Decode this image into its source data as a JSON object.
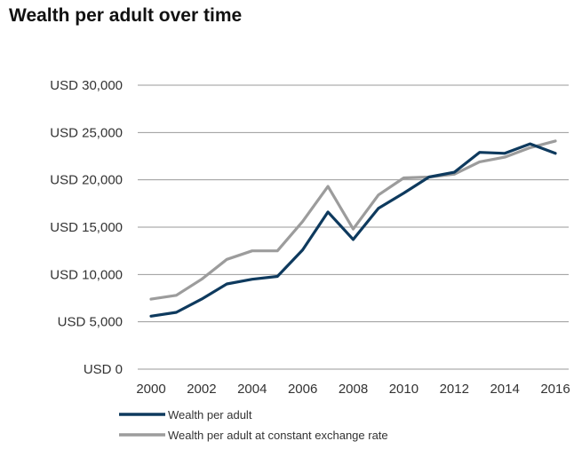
{
  "chart_data": {
    "type": "line",
    "title": "Wealth per adult over time",
    "xlabel": "",
    "ylabel": "",
    "x": [
      2000,
      2001,
      2002,
      2003,
      2004,
      2005,
      2006,
      2007,
      2008,
      2009,
      2010,
      2011,
      2012,
      2013,
      2014,
      2015,
      2016
    ],
    "x_ticks": [
      "2000",
      "2002",
      "2004",
      "2006",
      "2008",
      "2010",
      "2012",
      "2014",
      "2016"
    ],
    "y_ticks": [
      "USD 0",
      "USD 5,000",
      "USD 10,000",
      "USD 15,000",
      "USD 20,000",
      "USD 25,000",
      "USD 30,000"
    ],
    "ylim": [
      0,
      30000
    ],
    "xlim": [
      2000,
      2016
    ],
    "grid": "horizontal",
    "legend_position": "bottom",
    "series": [
      {
        "name": "Wealth per adult",
        "color": "#0e3a5e",
        "values": [
          5600,
          6000,
          7400,
          9000,
          9500,
          9800,
          12600,
          16600,
          13700,
          17000,
          18600,
          20300,
          20800,
          22900,
          22800,
          23800,
          22800
        ]
      },
      {
        "name": "Wealth per adult at constant exchange rate",
        "color": "#9c9c9c",
        "values": [
          7400,
          7800,
          9500,
          11600,
          12500,
          12500,
          15600,
          19300,
          14800,
          18400,
          20200,
          20300,
          20600,
          21900,
          22400,
          23400,
          24100
        ]
      }
    ]
  }
}
